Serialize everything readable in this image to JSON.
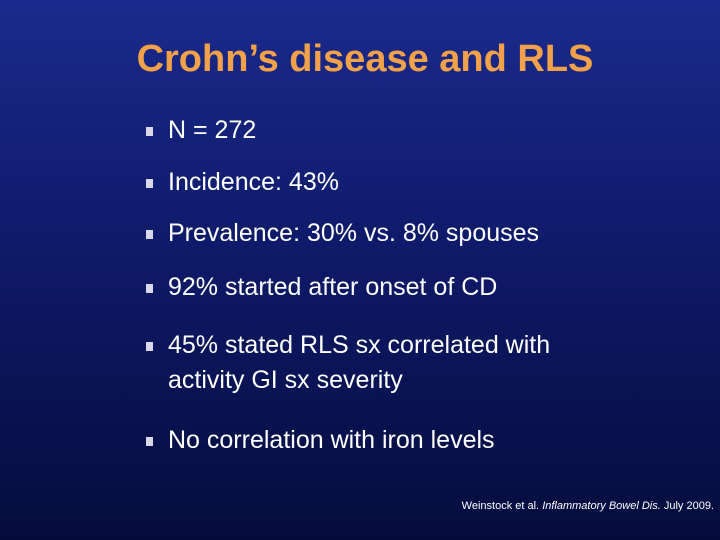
{
  "header": {
    "title": "Crohn’s disease and RLS"
  },
  "bullets": [
    [
      "N = 272"
    ],
    [
      "Incidence: 43%"
    ],
    [
      "Prevalence: 30% vs. 8% spouses"
    ],
    [
      "92% started after onset of CD"
    ],
    [
      "45% stated RLS sx correlated with",
      "activity GI sx severity"
    ],
    [
      "No correlation with iron levels"
    ]
  ],
  "citation": {
    "authors": "Weinstock et al.",
    "journal": "Inflammatory Bowel Dis.",
    "date": "July 2009."
  }
}
